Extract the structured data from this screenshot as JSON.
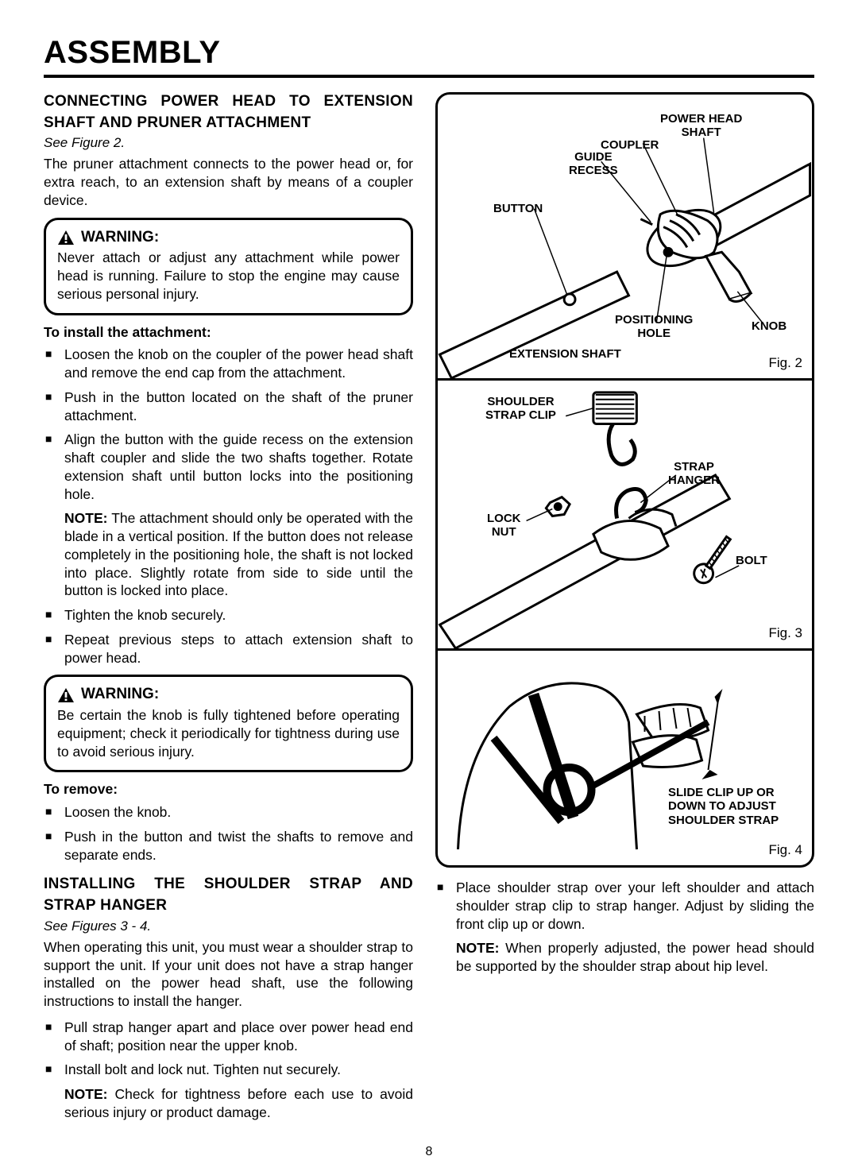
{
  "pageTitle": "ASSEMBLY",
  "pageNumber": "8",
  "sections": {
    "connect": {
      "heading_l1": "CONNECTING POWER HEAD TO EXTENSION",
      "heading_l2": "SHAFT AND PRUNER ATTACHMENT",
      "figRef": "See Figure 2.",
      "intro": "The pruner attachment connects to the power head or, for extra reach, to an extension shaft by means of a coupler device."
    },
    "warn1": {
      "label": "WARNING:",
      "text": "Never attach or adjust any attachment while power head is running. Failure to stop the engine may cause serious personal injury."
    },
    "install": {
      "heading": "To install the attachment:",
      "b1": "Loosen the knob on the coupler of the power head shaft and remove the end cap from the attachment.",
      "b2": "Push in the button located on the shaft of the pruner attachment.",
      "b3": "Align the button with the guide recess on the extension shaft coupler and slide the two shafts together. Rotate extension shaft until button locks into the positioning hole.",
      "note1a": "NOTE:",
      "note1b": " The attachment should only be operated with the blade in a vertical position. If the button does not release completely in the positioning hole, the shaft is not locked into place. Slightly rotate from side to side until the button is locked into place.",
      "b4": "Tighten the knob securely.",
      "b5": "Repeat previous steps to attach extension shaft to power head."
    },
    "warn2": {
      "label": "WARNING:",
      "text": "Be certain the knob is fully tightened before operating equipment; check it periodically for tightness during use to avoid serious injury."
    },
    "remove": {
      "heading": "To remove:",
      "b1": "Loosen the knob.",
      "b2": "Push in the button and twist the shafts to remove and separate ends."
    },
    "strap": {
      "heading_l1": "INSTALLING THE SHOULDER STRAP AND",
      "heading_l2": "STRAP HANGER",
      "figRef": "See Figures 3 - 4.",
      "intro": "When operating this unit, you must wear a shoulder strap to support the unit. If your unit does not have a strap hanger installed on the power head shaft, use the following instructions to install the hanger.",
      "b1": "Pull strap hanger apart and place over power head end of shaft; position near the upper knob.",
      "b2": "Install bolt and lock nut. Tighten nut securely.",
      "note_a": "NOTE:",
      "note_b": " Check for tightness before each use to avoid serious injury or product damage."
    },
    "rightList": {
      "b1": "Place shoulder strap over your left shoulder and attach shoulder strap clip to strap hanger. Adjust by sliding the front clip up or down.",
      "note_a": "NOTE:",
      "note_b": " When properly adjusted, the power head should be supported by the shoulder strap about hip level."
    }
  },
  "figures": {
    "fig2": {
      "caption": "Fig. 2",
      "labels": {
        "powerHeadShaft": "POWER HEAD\nSHAFT",
        "coupler": "COUPLER",
        "guideRecess": "GUIDE\nRECESS",
        "button": "BUTTON",
        "positioningHole": "POSITIONING\nHOLE",
        "knob": "KNOB",
        "extensionShaft": "EXTENSION SHAFT"
      }
    },
    "fig3": {
      "caption": "Fig. 3",
      "labels": {
        "shoulderStrapClip": "SHOULDER\nSTRAP CLIP",
        "strapHanger": "STRAP\nHANGER",
        "lockNut": "LOCK\nNUT",
        "bolt": "BOLT"
      }
    },
    "fig4": {
      "caption": "Fig. 4",
      "labels": {
        "slideClip": "SLIDE CLIP UP OR\nDOWN TO ADJUST\nSHOULDER STRAP"
      }
    }
  }
}
